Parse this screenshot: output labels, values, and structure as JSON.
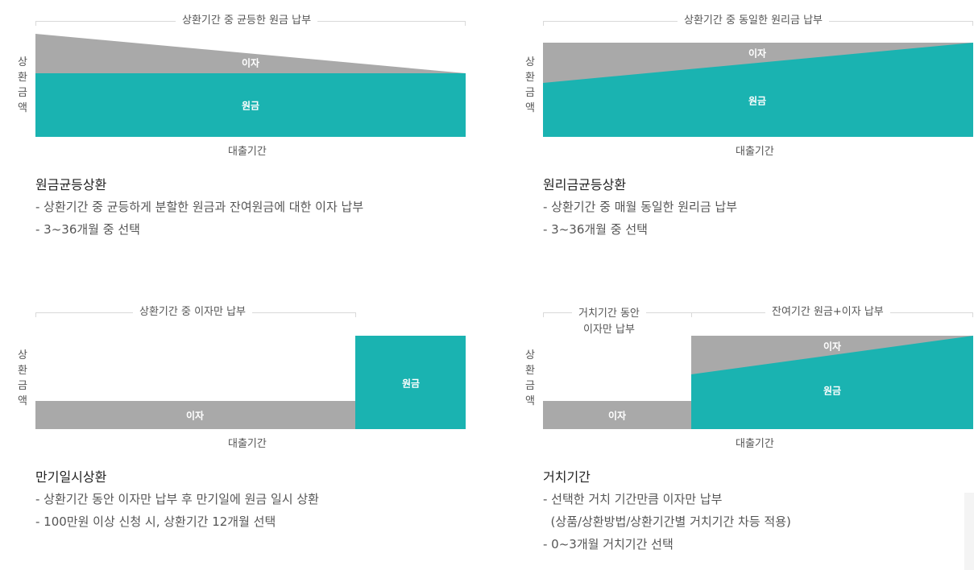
{
  "colors": {
    "principal": "#1ab3b1",
    "interest": "#a9a9a9",
    "line": "#d9d9d9"
  },
  "panels": [
    {
      "id": "equal-principal",
      "bracket": "상환기간 중 균등한 원금 납부",
      "ylabel": "상환금액",
      "xlabel": "대출기간",
      "interest_label": "이자",
      "principal_label": "원금",
      "title": "원금균등상환",
      "desc": [
        "- 상환기간 중 균등하게 분할한 원금과 잔여원금에 대한 이자 납부",
        "- 3~36개월 중 선택"
      ]
    },
    {
      "id": "equal-installment",
      "bracket": "상환기간 중 동일한 원리금 납부",
      "ylabel": "상환금액",
      "xlabel": "대출기간",
      "interest_label": "이자",
      "principal_label": "원금",
      "title": "원리금균등상환",
      "desc": [
        "- 상환기간 중 매월 동일한 원리금 납부",
        "- 3~36개월 중 선택"
      ]
    },
    {
      "id": "bullet",
      "bracket": "상환기간 중 이자만 납부",
      "ylabel": "상환금액",
      "xlabel": "대출기간",
      "interest_label": "이자",
      "principal_label": "원금",
      "title": "만기일시상환",
      "desc": [
        "- 상환기간 동안 이자만 납부 후 만기일에 원금 일시 상환",
        "- 100만원 이상 신청 시, 상환기간 12개월 선택"
      ]
    },
    {
      "id": "grace",
      "bracket_left_1": "거치기간 동안",
      "bracket_left_2": "이자만 납부",
      "bracket_right": "잔여기간 원금+이자 납부",
      "ylabel": "상환금액",
      "xlabel": "대출기간",
      "interest_label": "이자",
      "interest_label_2": "이자",
      "principal_label": "원금",
      "title": "거치기간",
      "desc": [
        "- 선택한 거치 기간만큼 이자만 납부",
        "  (상품/상환방법/상환기간별 거치기간 차등 적용)",
        "- 0~3개월 거치기간 선택"
      ]
    }
  ]
}
